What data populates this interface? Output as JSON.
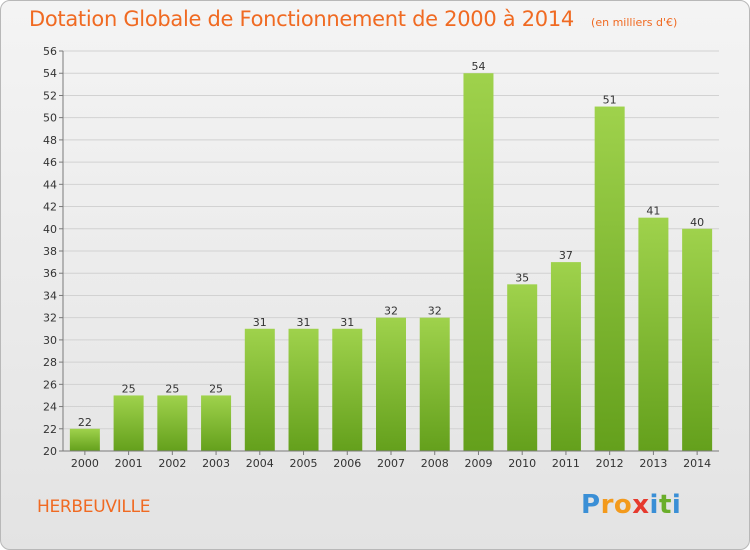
{
  "header": {
    "title": "Dotation Globale de Fonctionnement de 2000 à 2014",
    "unit": "(en milliers d'€)"
  },
  "commune": "HERBEUVILLE",
  "logo": {
    "text": "Proxiti",
    "letters": [
      "P",
      "r",
      "o",
      "x",
      "i",
      "t",
      "i"
    ],
    "colors": [
      "#3a8fd6",
      "#f39a1c",
      "#f39a1c",
      "#e63a2e",
      "#3a8fd6",
      "#6aae2a",
      "#3a8fd6"
    ]
  },
  "colors": {
    "bar_top": "#9fd24c",
    "bar_bottom": "#64a01c",
    "grid": "#d2d2d2",
    "axis": "#7a7a7a",
    "title": "#f06a22"
  },
  "chart_data": {
    "type": "bar",
    "title": "Dotation Globale de Fonctionnement de 2000 à 2014",
    "subtitle": "(en milliers d'€)",
    "categories": [
      "2000",
      "2001",
      "2002",
      "2003",
      "2004",
      "2005",
      "2006",
      "2007",
      "2008",
      "2009",
      "2010",
      "2011",
      "2012",
      "2013",
      "2014"
    ],
    "values": [
      22,
      25,
      25,
      25,
      31,
      31,
      31,
      32,
      32,
      54,
      35,
      37,
      51,
      41,
      40
    ],
    "ylim": [
      20,
      56
    ],
    "ytick_step": 2,
    "grid": true,
    "xlabel": "",
    "ylabel": ""
  }
}
